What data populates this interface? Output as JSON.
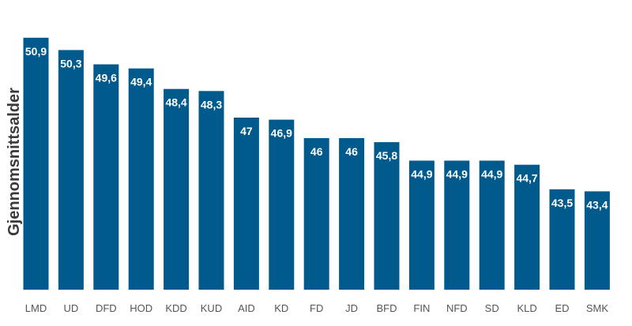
{
  "chart_data": {
    "type": "bar",
    "title": "",
    "xlabel": "",
    "ylabel": "Gjennomsnittsalder",
    "categories": [
      "LMD",
      "UD",
      "DFD",
      "HOD",
      "KDD",
      "KUD",
      "AID",
      "KD",
      "FD",
      "JD",
      "BFD",
      "FIN",
      "NFD",
      "SD",
      "KLD",
      "ED",
      "SMK"
    ],
    "values": [
      50.9,
      50.3,
      49.6,
      49.4,
      48.4,
      48.3,
      47,
      46.9,
      46,
      46,
      45.8,
      44.9,
      44.9,
      44.9,
      44.7,
      43.5,
      43.4
    ],
    "value_labels": [
      "50,9",
      "50,3",
      "49,6",
      "49,4",
      "48,4",
      "48,3",
      "47",
      "46,9",
      "46",
      "46",
      "45,8",
      "44,9",
      "44,9",
      "44,9",
      "44,7",
      "43,5",
      "43,4"
    ],
    "ylim": [
      38.6,
      51.2
    ],
    "grid": false,
    "legend": "none",
    "bar_color": "#005a8c"
  }
}
